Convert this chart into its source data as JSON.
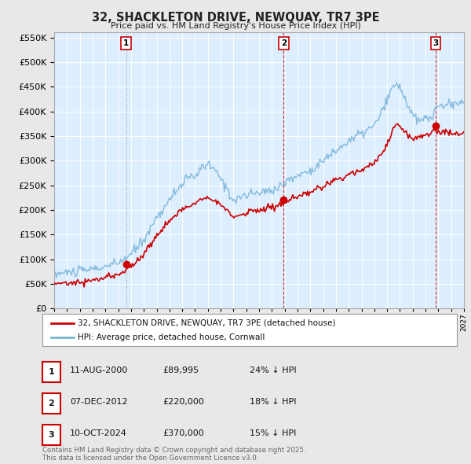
{
  "title": "32, SHACKLETON DRIVE, NEWQUAY, TR7 3PE",
  "subtitle": "Price paid vs. HM Land Registry's House Price Index (HPI)",
  "legend_line1": "32, SHACKLETON DRIVE, NEWQUAY, TR7 3PE (detached house)",
  "legend_line2": "HPI: Average price, detached house, Cornwall",
  "sale_color": "#cc0000",
  "hpi_color": "#7ab4d8",
  "vline1_color": "#888888",
  "vline23_color": "#cc0000",
  "background_color": "#e8e8e8",
  "plot_bg_color": "#ddeeff",
  "grid_color": "#ffffff",
  "sale_points": [
    {
      "year": 2000.61,
      "price": 89995,
      "label": "1",
      "vline_color": "#888888",
      "vline_style": "dotted"
    },
    {
      "year": 2012.92,
      "price": 220000,
      "label": "2",
      "vline_color": "#cc0000",
      "vline_style": "dashed"
    },
    {
      "year": 2024.78,
      "price": 370000,
      "label": "3",
      "vline_color": "#cc0000",
      "vline_style": "dashed"
    }
  ],
  "transactions": [
    {
      "label": "1",
      "date": "11-AUG-2000",
      "price": "£89,995",
      "pct": "24% ↓ HPI"
    },
    {
      "label": "2",
      "date": "07-DEC-2012",
      "price": "£220,000",
      "pct": "18% ↓ HPI"
    },
    {
      "label": "3",
      "date": "10-OCT-2024",
      "price": "£370,000",
      "pct": "15% ↓ HPI"
    }
  ],
  "footer": "Contains HM Land Registry data © Crown copyright and database right 2025.\nThis data is licensed under the Open Government Licence v3.0.",
  "ylim": [
    0,
    560000
  ],
  "yticks": [
    0,
    50000,
    100000,
    150000,
    200000,
    250000,
    300000,
    350000,
    400000,
    450000,
    500000,
    550000
  ],
  "xstart": 1995,
  "xend": 2027
}
